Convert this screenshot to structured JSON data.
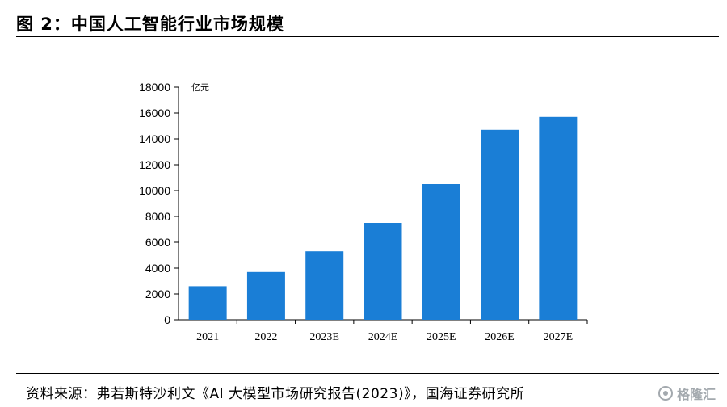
{
  "figure": {
    "title": "图 2：中国人工智能行业市场规模",
    "source": "资料来源：弗若斯特沙利文《AI 大模型市场研究报告(2023)》，国海证券研究所",
    "watermark": "格隆汇"
  },
  "chart_data": {
    "type": "bar",
    "unit": "亿元",
    "categories": [
      "2021",
      "2022",
      "2023E",
      "2024E",
      "2025E",
      "2026E",
      "2027E"
    ],
    "series": [
      {
        "values": [
          2600,
          3700,
          5300,
          7500,
          10500,
          14700,
          15700
        ],
        "color": "#1a7ed6"
      }
    ],
    "ylim": [
      0,
      18000
    ],
    "yticks": [
      "0",
      "2000",
      "4000",
      "6000",
      "8000",
      "10000",
      "12000",
      "14000",
      "16000",
      "18000"
    ],
    "grid": false,
    "legend": "none"
  }
}
